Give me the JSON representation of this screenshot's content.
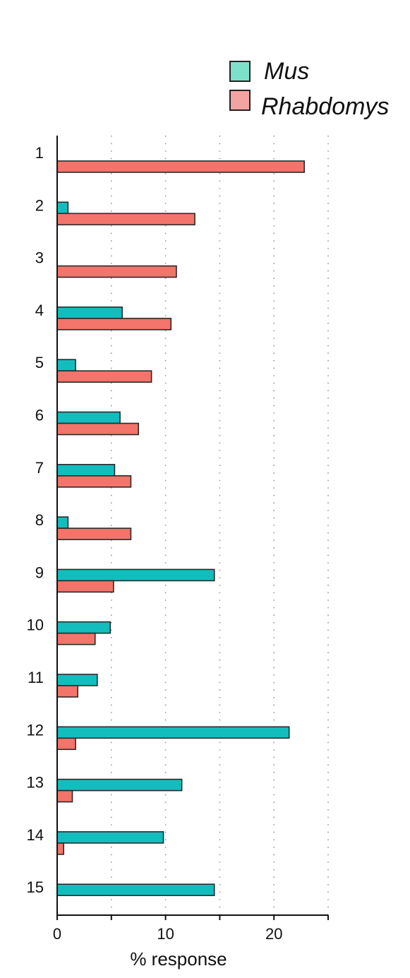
{
  "chart_data": {
    "type": "bar",
    "orientation": "horizontal",
    "categories": [
      "1",
      "2",
      "3",
      "4",
      "5",
      "6",
      "7",
      "8",
      "9",
      "10",
      "11",
      "12",
      "13",
      "14",
      "15"
    ],
    "series": [
      {
        "name": "Mus",
        "color": "#14BDBD",
        "legend_color": "#7EE0CB",
        "values": [
          0,
          1,
          0,
          6,
          1.7,
          5.8,
          5.3,
          1,
          14.5,
          4.9,
          3.7,
          21.4,
          11.5,
          9.8,
          14.5
        ]
      },
      {
        "name": "Rhabdomys",
        "color": "#F2746A",
        "legend_color": "#F4A3A3",
        "values": [
          22.8,
          12.7,
          11,
          10.5,
          8.7,
          7.5,
          6.8,
          6.8,
          5.2,
          3.5,
          1.9,
          1.7,
          1.4,
          0.6,
          0
        ]
      }
    ],
    "xlabel": "% response",
    "xlim": [
      0,
      25
    ],
    "x_ticks": [
      "0",
      "10",
      "20"
    ],
    "x_tick_values": [
      0,
      10,
      20
    ],
    "gridlines": [
      5,
      10,
      15,
      20,
      25
    ],
    "grid": "dotted vertical",
    "legend_position": "top-right"
  }
}
